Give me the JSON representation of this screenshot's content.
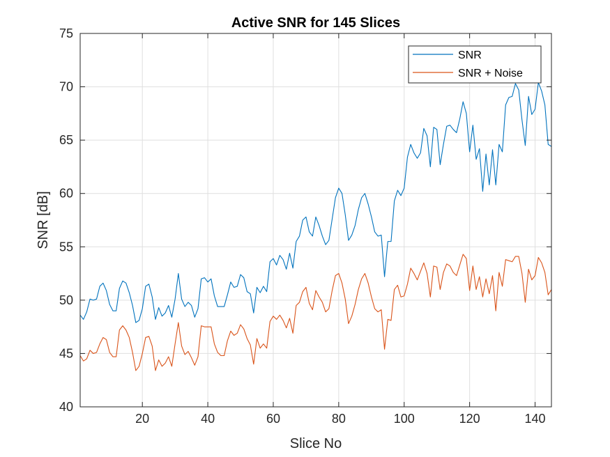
{
  "chart_data": {
    "type": "line",
    "title": "Active SNR for 145 Slices",
    "xlabel": "Slice No",
    "ylabel": "SNR [dB]",
    "xlim": [
      1,
      145
    ],
    "ylim": [
      40,
      75
    ],
    "xticks": [
      "20",
      "40",
      "60",
      "80",
      "100",
      "120",
      "140"
    ],
    "yticks": [
      "40",
      "45",
      "50",
      "55",
      "60",
      "65",
      "70",
      "75"
    ],
    "grid": true,
    "legend_position": "top-right",
    "series": [
      {
        "name": "SNR",
        "color": "#0072bd",
        "x_start": 1,
        "values": [
          48.6,
          48.2,
          48.9,
          50.1,
          50.0,
          50.1,
          51.3,
          51.6,
          50.9,
          49.6,
          49.0,
          49.0,
          51.1,
          51.8,
          51.6,
          50.7,
          49.5,
          47.9,
          48.1,
          49.2,
          51.3,
          51.5,
          50.3,
          48.2,
          49.3,
          48.5,
          48.8,
          49.5,
          48.4,
          50.1,
          52.5,
          50.1,
          49.4,
          49.8,
          49.5,
          48.4,
          49.2,
          52.0,
          52.1,
          51.7,
          52.0,
          50.4,
          49.4,
          49.4,
          49.4,
          50.5,
          51.7,
          51.2,
          51.3,
          52.4,
          52.1,
          50.8,
          50.6,
          48.8,
          51.2,
          50.7,
          51.3,
          50.8,
          53.6,
          53.9,
          53.3,
          54.2,
          53.8,
          52.9,
          54.4,
          53.0,
          55.5,
          56.0,
          57.5,
          57.8,
          56.4,
          56.0,
          57.8,
          57.0,
          56.0,
          55.2,
          55.6,
          57.6,
          59.6,
          60.5,
          60.0,
          58.0,
          55.6,
          56.1,
          57.0,
          58.5,
          59.6,
          60.0,
          59.0,
          57.8,
          56.4,
          56.0,
          56.1,
          52.2,
          55.5,
          55.5,
          59.3,
          60.3,
          59.8,
          60.5,
          63.4,
          64.6,
          63.8,
          63.3,
          63.8,
          66.1,
          65.4,
          62.5,
          66.2,
          66.0,
          62.7,
          64.6,
          66.3,
          66.4,
          66.0,
          65.7,
          67.0,
          68.6,
          67.5,
          63.9,
          66.4,
          63.2,
          64.2,
          60.2,
          63.7,
          60.8,
          64.1,
          60.8,
          64.6,
          63.9,
          68.3,
          69.0,
          69.1,
          70.3,
          69.7,
          66.9,
          64.5,
          69.1,
          67.4,
          67.9,
          70.4,
          69.6,
          68.3,
          64.6,
          64.4
        ]
      },
      {
        "name": "SNR + Noise",
        "color": "#d95319",
        "x_start": 1,
        "values": [
          44.8,
          44.3,
          44.5,
          45.3,
          45.0,
          45.1,
          45.9,
          46.5,
          46.3,
          45.1,
          44.7,
          44.7,
          47.2,
          47.6,
          47.2,
          46.5,
          45.1,
          43.4,
          43.8,
          45.0,
          46.5,
          46.6,
          45.7,
          43.4,
          44.4,
          43.8,
          44.1,
          44.7,
          43.8,
          45.9,
          47.9,
          45.7,
          44.9,
          45.2,
          44.6,
          43.9,
          44.7,
          47.6,
          47.5,
          47.5,
          47.5,
          45.9,
          45.1,
          44.8,
          44.8,
          46.2,
          47.1,
          46.7,
          46.9,
          47.7,
          47.3,
          46.4,
          45.8,
          44.0,
          46.4,
          45.5,
          45.9,
          45.5,
          48.0,
          48.5,
          48.2,
          48.6,
          48.1,
          47.4,
          48.3,
          46.9,
          49.5,
          49.8,
          50.8,
          51.2,
          49.7,
          49.1,
          50.9,
          50.3,
          49.8,
          48.9,
          49.2,
          50.9,
          52.3,
          52.5,
          51.6,
          50.1,
          47.8,
          48.5,
          49.6,
          51.0,
          52.0,
          52.5,
          51.6,
          50.3,
          49.2,
          48.9,
          49.1,
          45.4,
          48.2,
          48.1,
          51.0,
          51.4,
          50.3,
          50.4,
          51.5,
          53.0,
          52.5,
          51.9,
          52.7,
          53.5,
          52.5,
          50.3,
          53.2,
          53.1,
          51.0,
          52.6,
          53.4,
          53.2,
          52.6,
          52.3,
          53.3,
          54.3,
          53.9,
          50.9,
          53.2,
          51.0,
          52.2,
          50.3,
          52.0,
          50.6,
          52.3,
          49.0,
          52.6,
          51.3,
          53.8,
          53.7,
          53.6,
          54.1,
          54.1,
          52.5,
          49.8,
          52.9,
          51.9,
          52.3,
          54.0,
          53.5,
          52.6,
          50.5,
          51.0
        ]
      }
    ]
  }
}
